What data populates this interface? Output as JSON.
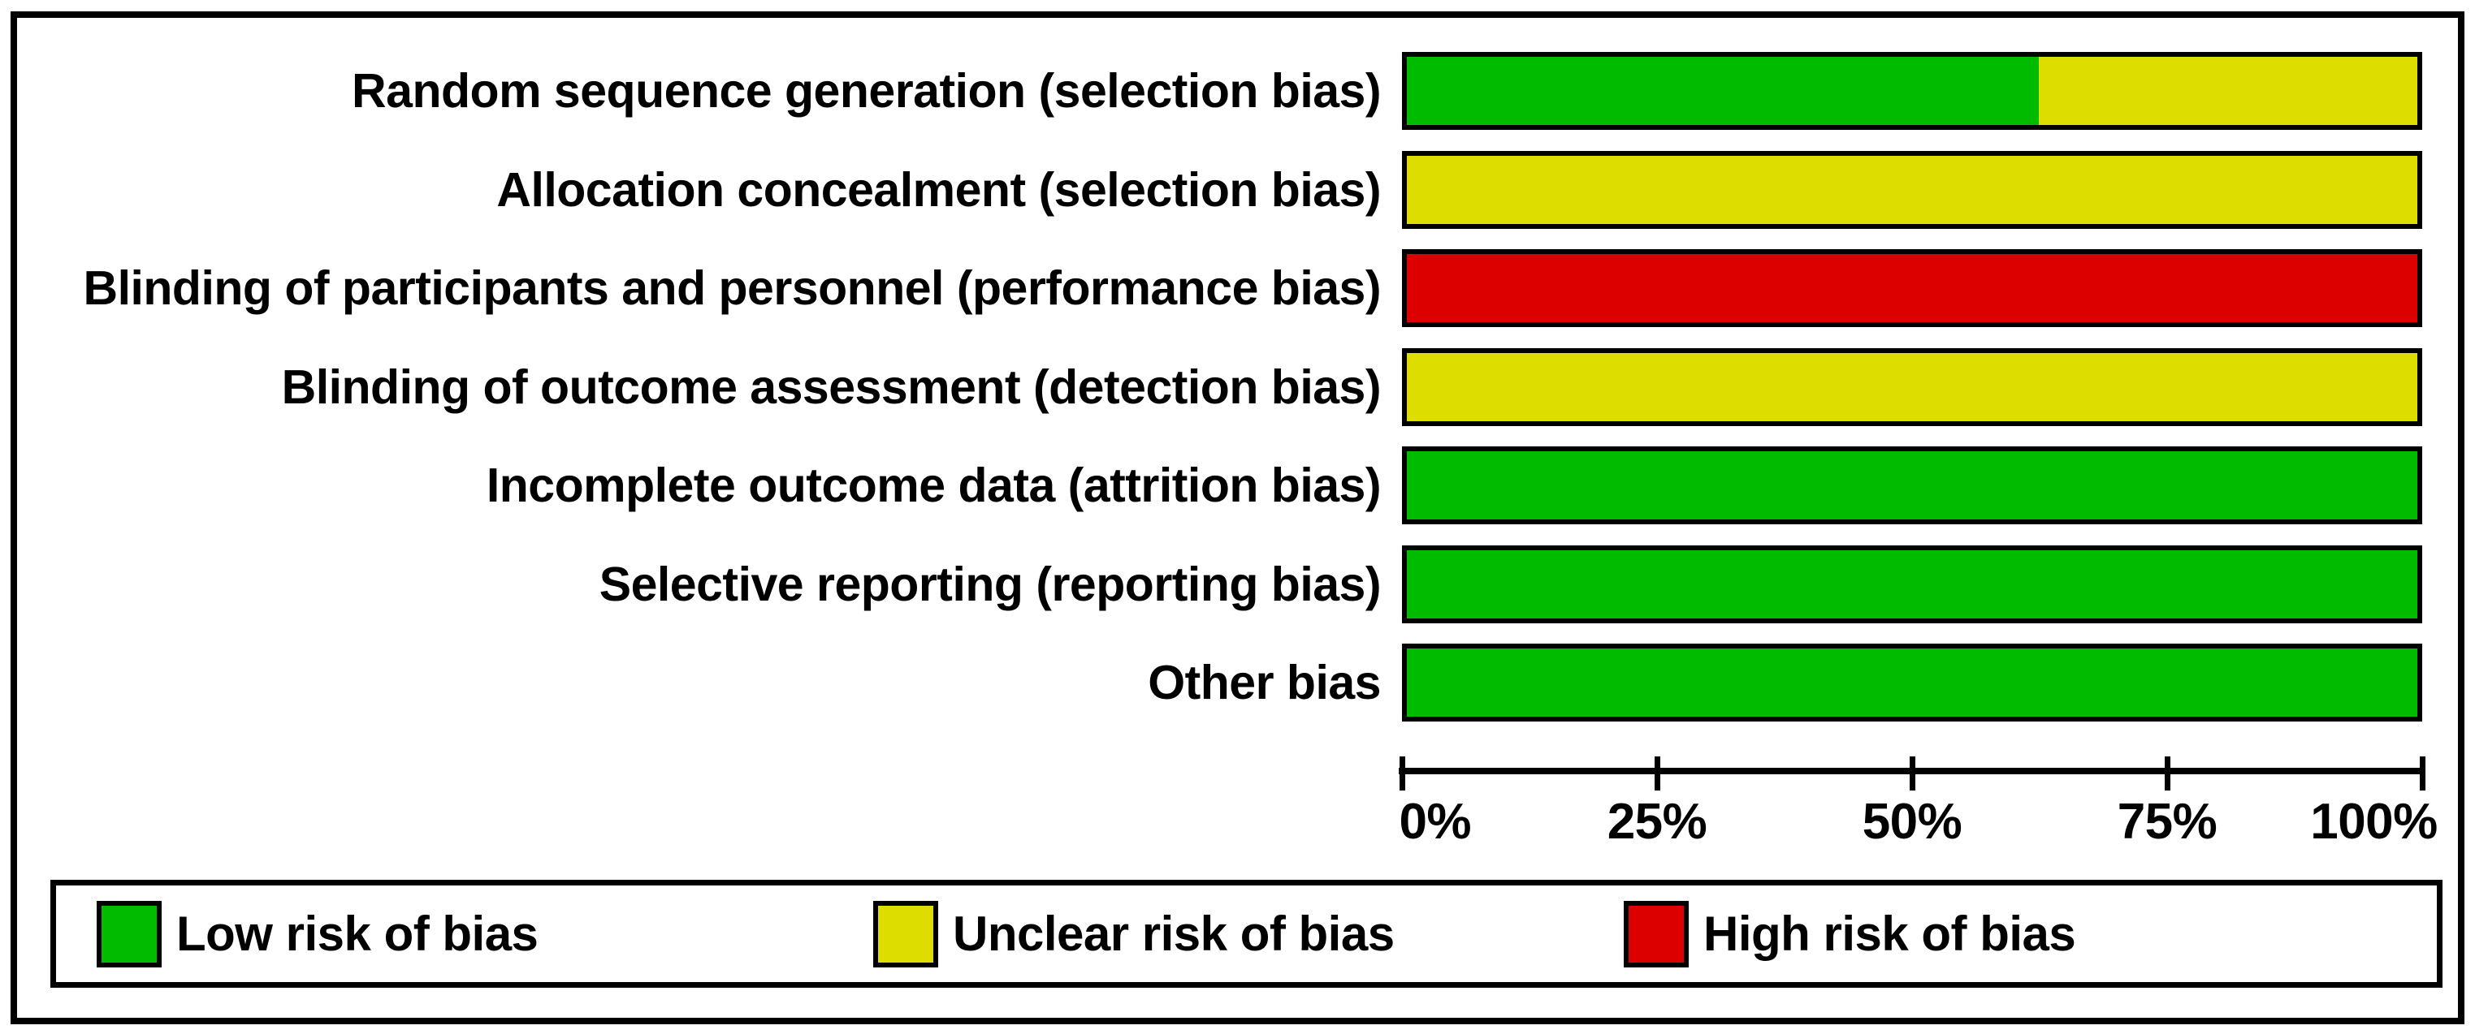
{
  "figure": {
    "background_color": "#ffffff",
    "frame_border_color": "#000000"
  },
  "chart_data": {
    "type": "bar",
    "orientation": "horizontal-stacked",
    "title": "",
    "xlabel": "",
    "ylabel": "",
    "xlim": [
      0,
      100
    ],
    "x_ticks": [
      "0%",
      "25%",
      "50%",
      "75%",
      "100%"
    ],
    "grid": false,
    "legend_position": "bottom",
    "categories": [
      "Random sequence generation (selection bias)",
      "Allocation concealment (selection bias)",
      "Blinding of participants and personnel (performance bias)",
      "Blinding of outcome assessment (detection bias)",
      "Incomplete outcome data (attrition bias)",
      "Selective reporting (reporting bias)",
      "Other bias"
    ],
    "series": [
      {
        "name": "Low risk of bias",
        "color": "#00bb00",
        "values": [
          62.5,
          0,
          0,
          0,
          100,
          100,
          100
        ]
      },
      {
        "name": "Unclear risk of bias",
        "color": "#dddd00",
        "values": [
          37.5,
          100,
          0,
          100,
          0,
          0,
          0
        ]
      },
      {
        "name": "High risk of bias",
        "color": "#dd0000",
        "values": [
          0,
          0,
          100,
          0,
          0,
          0,
          0
        ]
      }
    ]
  }
}
